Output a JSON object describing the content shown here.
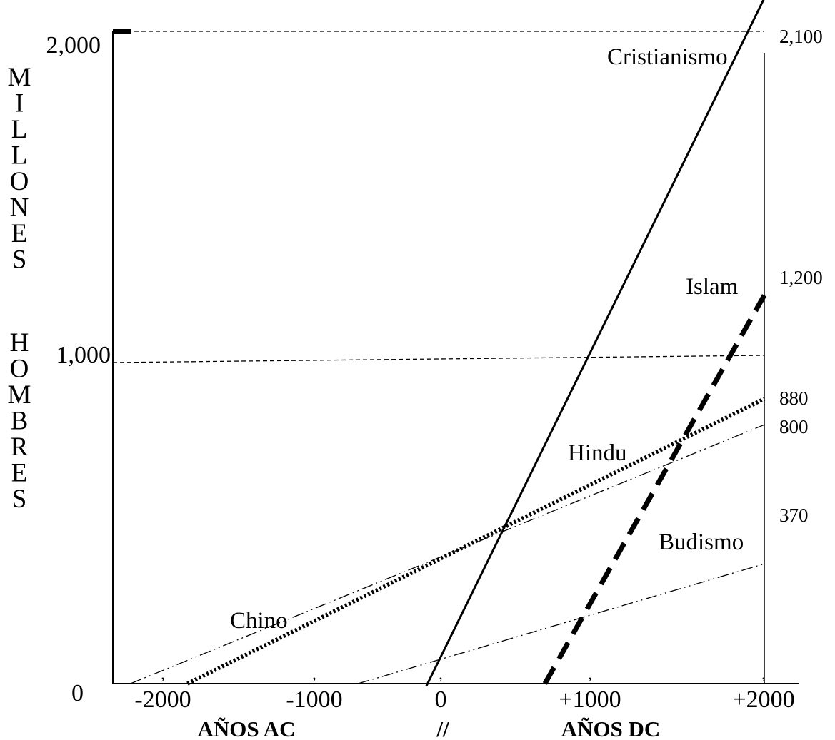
{
  "chart_data": {
    "type": "line",
    "xlabel_left": "AÑOS AC",
    "xlabel_break": "//",
    "xlabel_right": "AÑOS DC",
    "ylabel": "MILLONES HOMBRES",
    "x_ticks": [
      "-2000",
      "-1000",
      "0",
      "+1000",
      "+2000"
    ],
    "y_ticks": [
      "0",
      "1,000",
      "2,000"
    ],
    "xlim": [
      -2300,
      2300
    ],
    "ylim": [
      0,
      2100
    ],
    "grid": false,
    "reference_lines": [
      1000,
      2000
    ],
    "series": [
      {
        "name": "Cristianismo",
        "style": "solid",
        "points": [
          [
            -50,
            0
          ],
          [
            2000,
            2100
          ]
        ],
        "end_label": "2,100"
      },
      {
        "name": "Islam",
        "style": "dashed-thick",
        "points": [
          [
            650,
            0
          ],
          [
            2000,
            1200
          ]
        ],
        "end_label": "1,200"
      },
      {
        "name": "Hindu",
        "style": "dotted-thick",
        "points": [
          [
            -1550,
            0
          ],
          [
            2000,
            880
          ]
        ],
        "end_label": "880"
      },
      {
        "name": "Chino",
        "style": "dash-dot-dot",
        "points": [
          [
            -1900,
            0
          ],
          [
            2000,
            800
          ]
        ],
        "end_label": "800"
      },
      {
        "name": "Budismo",
        "style": "dash-dot-dot",
        "points": [
          [
            -500,
            0
          ],
          [
            2000,
            370
          ]
        ],
        "end_label": "370"
      }
    ]
  }
}
